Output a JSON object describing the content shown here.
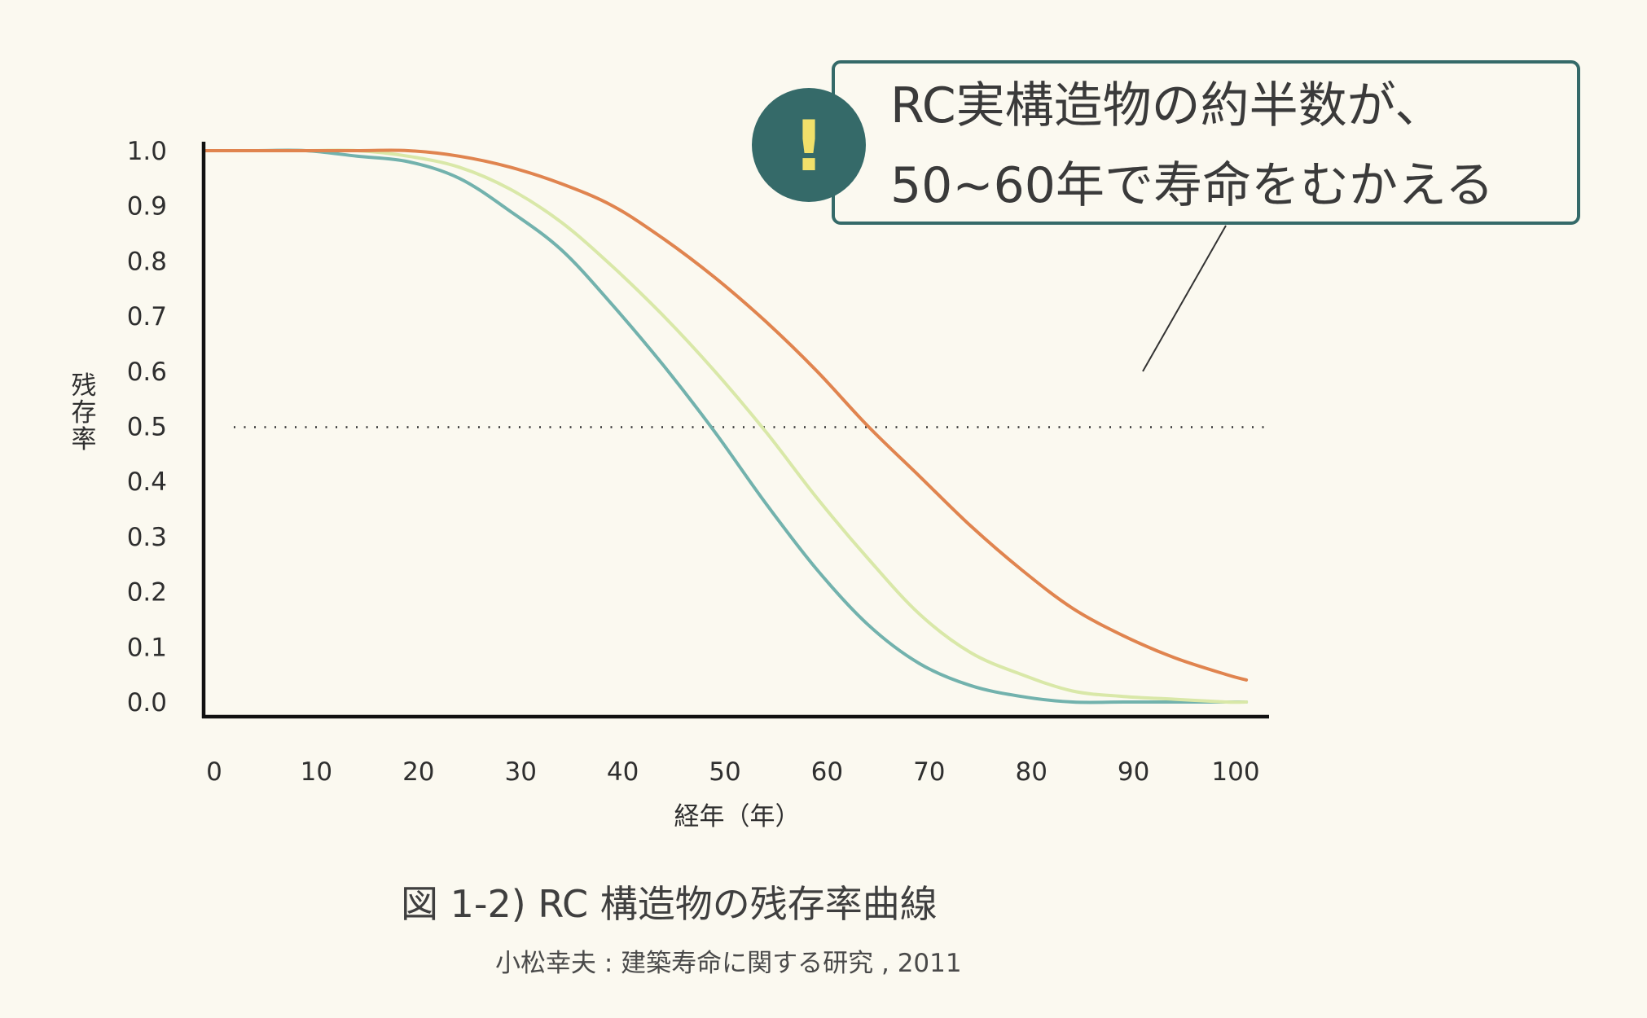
{
  "chart_data": {
    "type": "line",
    "title": "図 1-2) RC 構造物の残存率曲線",
    "source": "小松幸夫 : 建築寿命に関する研究 , 2011",
    "xlabel": "経年（年）",
    "ylabel": "残存率",
    "xlim": [
      0,
      102
    ],
    "ylim": [
      0.0,
      1.0
    ],
    "xticks": [
      "0",
      "10",
      "20",
      "30",
      "40",
      "50",
      "60",
      "70",
      "80",
      "90",
      "100"
    ],
    "yticks": [
      "1.0",
      "0.9",
      "0.8",
      "0.7",
      "0.6",
      "0.5",
      "0.4",
      "0.3",
      "0.2",
      "0.1",
      "0.0"
    ],
    "x": [
      0,
      5,
      10,
      15,
      20,
      25,
      30,
      35,
      40,
      45,
      50,
      55,
      60,
      65,
      70,
      75,
      80,
      85,
      90,
      95,
      100,
      102
    ],
    "series": [
      {
        "color": "#e0844f",
        "values": [
          1.0,
          1.0,
          1.0,
          1.0,
          1.0,
          0.99,
          0.97,
          0.94,
          0.9,
          0.84,
          0.77,
          0.69,
          0.6,
          0.5,
          0.41,
          0.32,
          0.24,
          0.17,
          0.12,
          0.08,
          0.05,
          0.04
        ]
      },
      {
        "color": "#d9e8a8",
        "values": [
          1.0,
          1.0,
          1.0,
          1.0,
          0.99,
          0.97,
          0.93,
          0.87,
          0.79,
          0.7,
          0.6,
          0.49,
          0.37,
          0.26,
          0.16,
          0.09,
          0.05,
          0.02,
          0.01,
          0.005,
          0.0,
          0.0
        ]
      },
      {
        "color": "#72b2ad",
        "values": [
          1.0,
          1.0,
          1.0,
          0.99,
          0.98,
          0.95,
          0.89,
          0.82,
          0.72,
          0.61,
          0.49,
          0.36,
          0.24,
          0.14,
          0.07,
          0.03,
          0.01,
          0.0,
          0.0,
          0.0,
          0.0,
          0.0
        ]
      }
    ],
    "reference_line": {
      "y": 0.5,
      "style": "dotted"
    },
    "annotation": {
      "lines": [
        "RC実構造物の約半数が、",
        "50~60年で寿命をむかえる"
      ],
      "icon": "exclamation-icon",
      "icon_glyph": "!",
      "icon_bg": "#356a69",
      "icon_color": "#f1e06a",
      "border_color": "#356a69"
    },
    "grid": false,
    "legend": "none"
  }
}
